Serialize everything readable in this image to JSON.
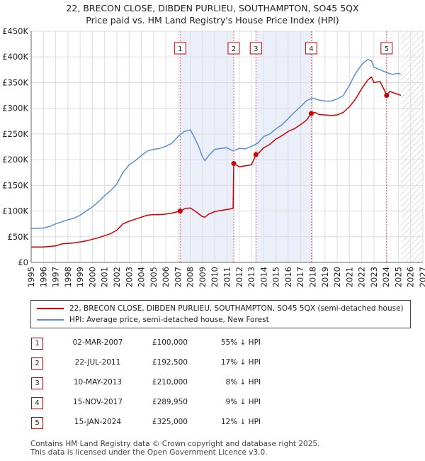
{
  "colors": {
    "price_paid": "#cc0000",
    "hpi": "#5b8fd0",
    "marker_line": "#d26060",
    "hatch": "#b8b8b8",
    "sold_band": "#ebeffa"
  },
  "chart_data": {
    "type": "line",
    "title": "22, BRECON CLOSE, DIBDEN PURLIEU, SOUTHAMPTON, SO45 5QX",
    "subtitle": "Price paid vs. HM Land Registry's House Price Index (HPI)",
    "xlim": [
      1995,
      2027
    ],
    "ylim": [
      0,
      450000
    ],
    "x_ticks": [
      1995,
      1996,
      1997,
      1998,
      1999,
      2000,
      2001,
      2002,
      2003,
      2004,
      2005,
      2006,
      2007,
      2008,
      2009,
      2010,
      2011,
      2012,
      2013,
      2014,
      2015,
      2016,
      2017,
      2018,
      2019,
      2020,
      2021,
      2022,
      2023,
      2024,
      2025,
      2026,
      2027
    ],
    "y_ticks": [
      {
        "value": 0,
        "label": "£0"
      },
      {
        "value": 50000,
        "label": "£50K"
      },
      {
        "value": 100000,
        "label": "£100K"
      },
      {
        "value": 150000,
        "label": "£150K"
      },
      {
        "value": 200000,
        "label": "£200K"
      },
      {
        "value": 250000,
        "label": "£250K"
      },
      {
        "value": 300000,
        "label": "£300K"
      },
      {
        "value": 350000,
        "label": "£350K"
      },
      {
        "value": 400000,
        "label": "£400K"
      },
      {
        "value": 450000,
        "label": "£450K"
      }
    ],
    "grid": true,
    "forecast_from": 2025.2,
    "series": [
      {
        "name": "22, BRECON CLOSE, DIBDEN PURLIEU, SOUTHAMPTON, SO45 5QX (semi-detached house)",
        "color": "#cc0000",
        "x": [
          1995.0,
          1996.0,
          1997.0,
          1997.5,
          1998.5,
          1999.5,
          2000.5,
          2001.5,
          2002.0,
          2002.5,
          2003.0,
          2003.5,
          2004.0,
          2004.5,
          2005.0,
          2005.5,
          2006.0,
          2006.5,
          2007.17,
          2007.6,
          2008.0,
          2008.5,
          2009.0,
          2009.2,
          2009.5,
          2010.0,
          2010.5,
          2011.0,
          2011.5,
          2011.55,
          2011.8,
          2012.0,
          2012.5,
          2013.0,
          2013.36,
          2013.6,
          2014.0,
          2014.5,
          2015.0,
          2015.5,
          2016.0,
          2016.5,
          2017.0,
          2017.5,
          2017.88,
          2018.2,
          2018.5,
          2019.0,
          2019.5,
          2020.0,
          2020.5,
          2021.0,
          2021.5,
          2022.0,
          2022.5,
          2022.8,
          2023.0,
          2023.5,
          2023.8,
          2024.04,
          2024.3,
          2024.6,
          2025.0,
          2025.2
        ],
        "y": [
          30000,
          30000,
          32000,
          36000,
          38000,
          42000,
          48000,
          56000,
          63000,
          75000,
          80000,
          84000,
          88000,
          92000,
          93000,
          93000,
          94000,
          96000,
          100000,
          105000,
          106000,
          98000,
          89000,
          88000,
          94000,
          99000,
          101000,
          103000,
          105000,
          192500,
          189000,
          186000,
          188000,
          190000,
          210000,
          213000,
          223000,
          230000,
          240000,
          247000,
          255000,
          260000,
          268000,
          277000,
          289950,
          292000,
          288000,
          287000,
          286000,
          287000,
          292000,
          303000,
          318000,
          338000,
          355000,
          361000,
          350000,
          352000,
          338000,
          325000,
          333000,
          330000,
          327000,
          325000
        ]
      },
      {
        "name": "HPI: Average price, semi-detached house, New Forest",
        "color": "#5b8fd0",
        "x": [
          1995.0,
          1996.0,
          1996.5,
          1997.0,
          1997.5,
          1998.0,
          1998.5,
          1999.0,
          1999.5,
          2000.0,
          2000.5,
          2001.0,
          2001.5,
          2002.0,
          2002.5,
          2003.0,
          2003.5,
          2004.0,
          2004.5,
          2005.0,
          2005.5,
          2006.0,
          2006.5,
          2007.0,
          2007.5,
          2008.0,
          2008.3,
          2008.7,
          2009.0,
          2009.2,
          2009.5,
          2010.0,
          2010.5,
          2011.0,
          2011.5,
          2012.0,
          2012.5,
          2013.0,
          2013.5,
          2014.0,
          2014.5,
          2015.0,
          2015.5,
          2016.0,
          2016.5,
          2017.0,
          2017.5,
          2018.0,
          2018.5,
          2019.0,
          2019.5,
          2020.0,
          2020.5,
          2021.0,
          2021.5,
          2022.0,
          2022.5,
          2022.8,
          2023.0,
          2023.5,
          2024.0,
          2024.5,
          2025.0,
          2025.2
        ],
        "y": [
          66000,
          67000,
          70000,
          75000,
          79000,
          83000,
          86000,
          92000,
          100000,
          108000,
          118000,
          130000,
          140000,
          153000,
          175000,
          190000,
          198000,
          208000,
          217000,
          220000,
          222000,
          226000,
          232000,
          245000,
          255000,
          258000,
          245000,
          225000,
          205000,
          198000,
          208000,
          220000,
          222000,
          223000,
          217000,
          222000,
          221000,
          226000,
          232000,
          245000,
          250000,
          260000,
          268000,
          280000,
          292000,
          303000,
          315000,
          320000,
          316000,
          314000,
          314000,
          318000,
          325000,
          345000,
          368000,
          385000,
          395000,
          392000,
          380000,
          375000,
          370000,
          366000,
          368000,
          366000
        ]
      }
    ],
    "sales": [
      {
        "num": "1",
        "x": 2007.17,
        "price": 100000,
        "date": "02-MAR-2007",
        "price_label": "£100,000",
        "hpi_label": "55% ↓ HPI"
      },
      {
        "num": "2",
        "x": 2011.55,
        "price": 192500,
        "date": "22-JUL-2011",
        "price_label": "£192,500",
        "hpi_label": "17% ↓ HPI"
      },
      {
        "num": "3",
        "x": 2013.36,
        "price": 210000,
        "date": "10-MAY-2013",
        "price_label": "£210,000",
        "hpi_label": "8% ↓ HPI"
      },
      {
        "num": "4",
        "x": 2017.88,
        "price": 289950,
        "date": "15-NOV-2017",
        "price_label": "£289,950",
        "hpi_label": "9% ↓ HPI"
      },
      {
        "num": "5",
        "x": 2024.04,
        "price": 325000,
        "date": "15-JAN-2024",
        "price_label": "£325,000",
        "hpi_label": "12% ↓ HPI"
      }
    ]
  },
  "legend": {
    "price_paid": "22, BRECON CLOSE, DIBDEN PURLIEU, SOUTHAMPTON, SO45 5QX (semi-detached house)",
    "hpi": "HPI: Average price, semi-detached house, New Forest"
  },
  "footer": {
    "line1": "Contains HM Land Registry data © Crown copyright and database right 2025.",
    "line2": "This data is licensed under the Open Government Licence v3.0."
  }
}
